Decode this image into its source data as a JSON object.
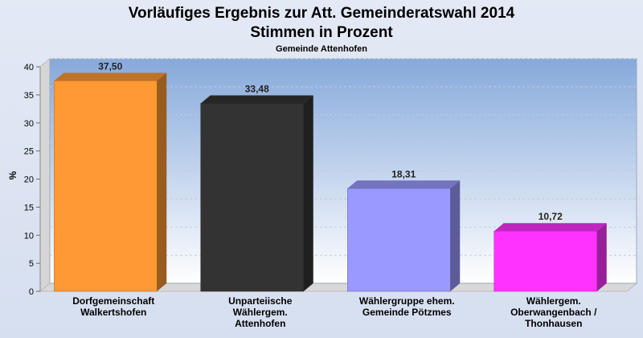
{
  "chart_data": {
    "type": "bar",
    "title": "Vorläufiges Ergebnis zur Att. Gemeinderatswahl 2014",
    "title_line2": "Stimmen in Prozent",
    "subtitle": "Gemeinde Attenhofen",
    "ylabel": "%",
    "ylim": [
      0,
      40
    ],
    "yticks": [
      0,
      5,
      10,
      15,
      20,
      25,
      30,
      35,
      40
    ],
    "grid": true,
    "categories": [
      [
        "Dorfgemeinschaft",
        "Walkertshofen"
      ],
      [
        "Unparteiische",
        "Wählergem.",
        "Attenhofen"
      ],
      [
        "Wählergruppe ehem.",
        "Gemeinde Pötzmes"
      ],
      [
        "Wählergem.",
        "Oberwangenbach /",
        "Thonhausen"
      ]
    ],
    "values": [
      37.5,
      33.48,
      18.31,
      10.72
    ],
    "value_labels": [
      "37,50",
      "33,48",
      "18,31",
      "10,72"
    ],
    "colors": [
      "#ff9933",
      "#333333",
      "#9999ff",
      "#ff33ff"
    ]
  }
}
